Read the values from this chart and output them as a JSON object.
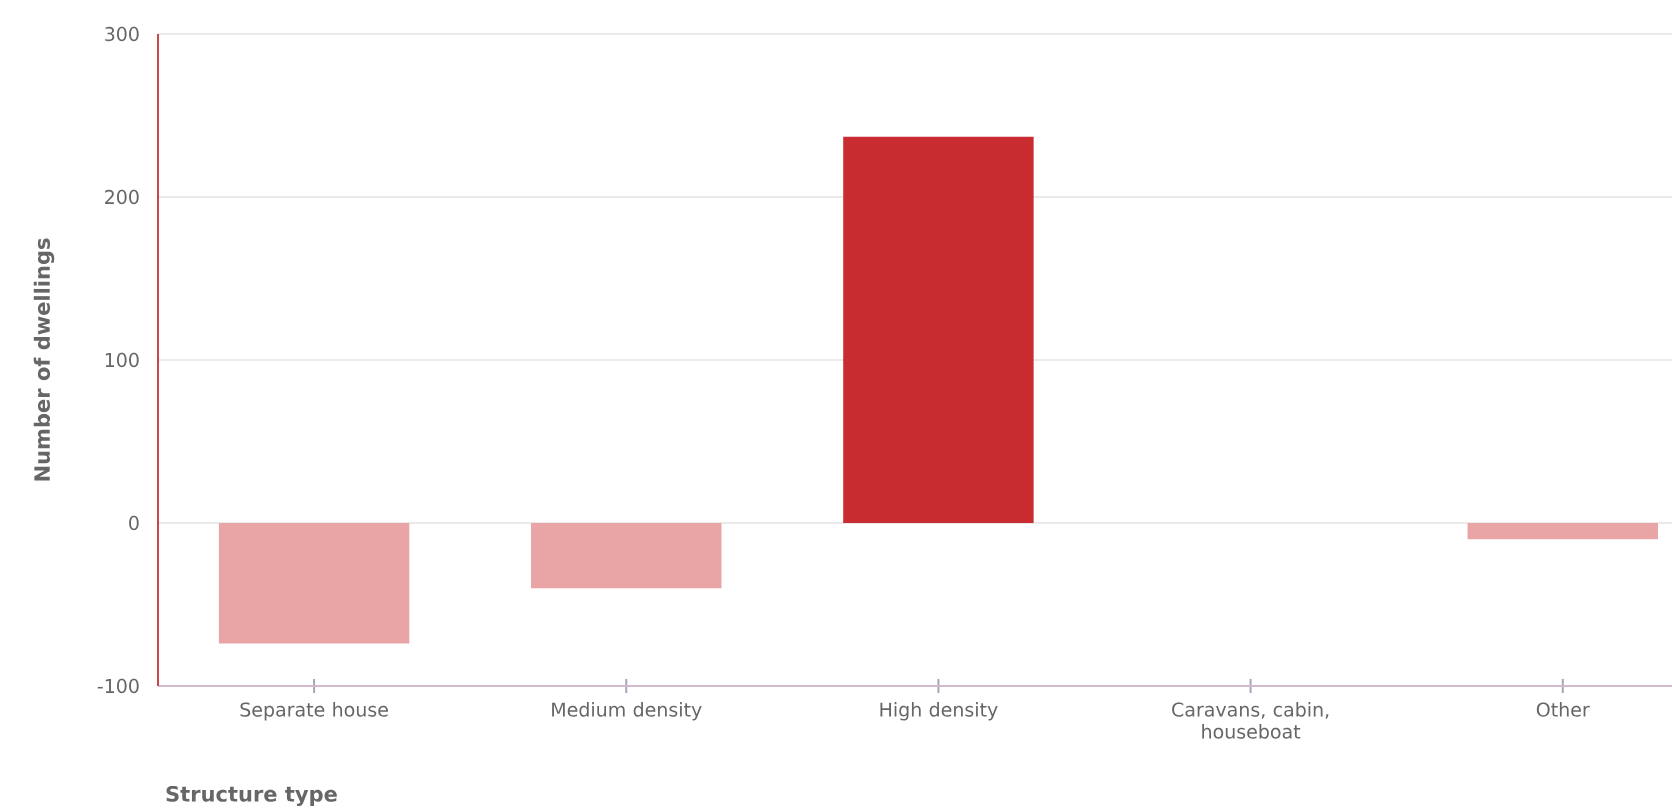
{
  "chart_data": {
    "type": "bar",
    "xlabel": "Structure type",
    "ylabel": "Number of dwellings",
    "categories": [
      "Separate house",
      "Medium density",
      "High density",
      "Caravans, cabin, houseboat",
      "Other"
    ],
    "values": [
      -74,
      -40,
      237,
      0,
      -10
    ],
    "colors": [
      "#e9a5a6",
      "#e9a5a6",
      "#c92c30",
      "#e9a5a6",
      "#e9a5a6"
    ],
    "ylim": [
      -100,
      300
    ],
    "yticks": [
      -100,
      0,
      100,
      200,
      300
    ],
    "grid": "y"
  }
}
